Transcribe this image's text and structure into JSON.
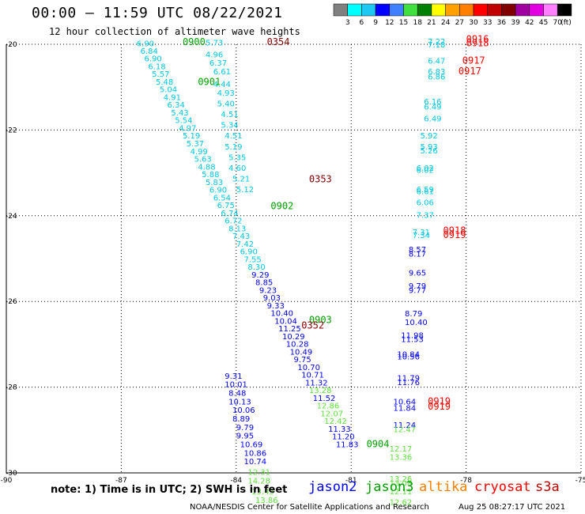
{
  "header": {
    "title": "00:00 – 11:59 UTC 08/22/2021",
    "subtitle": "12 hour collection of altimeter wave heights"
  },
  "colorbar": {
    "labels": [
      "3",
      "6",
      "9",
      "12",
      "15",
      "18",
      "21",
      "24",
      "27",
      "30",
      "33",
      "36",
      "39",
      "42",
      "45",
      "70"
    ],
    "unit": "(ft)",
    "colors": [
      "#808080",
      "#00ffff",
      "#1ec8f0",
      "#0000ff",
      "#4080ff",
      "#40e040",
      "#008000",
      "#ffff00",
      "#ffa000",
      "#ff8000",
      "#ff0000",
      "#c00000",
      "#800000",
      "#a000a0",
      "#e000e0",
      "#ff80ff",
      "#000000"
    ]
  },
  "footer": {
    "note": "note: 1) Time is in UTC; 2) SWH is in feet",
    "credit": "NOAA/NESDIS Center for Satellite Applications and Research",
    "timestamp": "Aug 25 08:27:17 UTC 2021",
    "legend": [
      {
        "name": "jason2",
        "color": "#0000ff"
      },
      {
        "name": "jason3",
        "color": "#00a000"
      },
      {
        "name": "altika",
        "color": "#ff8000"
      },
      {
        "name": "cryosat",
        "color": "#ff0000"
      },
      {
        "name": "s3a",
        "color": "#c00000"
      }
    ]
  },
  "chart_data": {
    "type": "scatter",
    "xlim": [
      -90,
      -75
    ],
    "ylim": [
      -30,
      -20
    ],
    "x_ticks": [
      -90,
      -87,
      -84,
      -81,
      -78,
      -75
    ],
    "y_ticks": [
      -20,
      -22,
      -24,
      -26,
      -28,
      -30
    ],
    "x_tick_labels": [
      "-90",
      "-87",
      "-84",
      "-81",
      "-78",
      "-75"
    ],
    "y_tick_labels": [
      "-20",
      "-22",
      "-24",
      "-26",
      "-28",
      "-30"
    ],
    "grid": true,
    "point_labels": [
      {
        "x": -86.6,
        "y": -20.05,
        "label": "6.90",
        "color": "#00c8e0"
      },
      {
        "x": -86.5,
        "y": -20.22,
        "label": "6.84",
        "color": "#00c8e0"
      },
      {
        "x": -86.4,
        "y": -20.4,
        "label": "6.90",
        "color": "#00c8e0"
      },
      {
        "x": -86.3,
        "y": -20.58,
        "label": "6.18",
        "color": "#00c8e0"
      },
      {
        "x": -86.2,
        "y": -20.76,
        "label": "5.57",
        "color": "#00c8e0"
      },
      {
        "x": -86.1,
        "y": -20.94,
        "label": "5.48",
        "color": "#00c8e0"
      },
      {
        "x": -86.0,
        "y": -21.12,
        "label": "5.04",
        "color": "#00c8e0"
      },
      {
        "x": -85.9,
        "y": -21.3,
        "label": "4.91",
        "color": "#00c8e0"
      },
      {
        "x": -85.8,
        "y": -21.48,
        "label": "6.34",
        "color": "#00c8e0"
      },
      {
        "x": -85.7,
        "y": -21.66,
        "label": "5.43",
        "color": "#00c8e0"
      },
      {
        "x": -85.6,
        "y": -21.84,
        "label": "5.54",
        "color": "#00c8e0"
      },
      {
        "x": -85.5,
        "y": -22.02,
        "label": "4.97",
        "color": "#00c8e0"
      },
      {
        "x": -85.4,
        "y": -22.2,
        "label": "5.19",
        "color": "#00c8e0"
      },
      {
        "x": -85.3,
        "y": -22.38,
        "label": "5.37",
        "color": "#00c8e0"
      },
      {
        "x": -85.2,
        "y": -22.56,
        "label": "4.99",
        "color": "#00c8e0"
      },
      {
        "x": -85.1,
        "y": -22.74,
        "label": "5.63",
        "color": "#00c8e0"
      },
      {
        "x": -85.0,
        "y": -22.92,
        "label": "4.88",
        "color": "#00c8e0"
      },
      {
        "x": -84.9,
        "y": -23.1,
        "label": "5.88",
        "color": "#00c8e0"
      },
      {
        "x": -84.8,
        "y": -23.28,
        "label": "5.83",
        "color": "#00c8e0"
      },
      {
        "x": -84.7,
        "y": -23.46,
        "label": "6.90",
        "color": "#00c8e0"
      },
      {
        "x": -84.6,
        "y": -23.64,
        "label": "6.54",
        "color": "#00c8e0"
      },
      {
        "x": -84.5,
        "y": -23.82,
        "label": "6.75",
        "color": "#00c8e0"
      },
      {
        "x": -84.4,
        "y": -24.0,
        "label": "6.74",
        "color": "#00c8e0"
      },
      {
        "x": -84.3,
        "y": -24.18,
        "label": "6.72",
        "color": "#00c8e0"
      },
      {
        "x": -84.2,
        "y": -24.36,
        "label": "8.13",
        "color": "#00c8e0"
      },
      {
        "x": -84.1,
        "y": -24.54,
        "label": "7.43",
        "color": "#00c8e0"
      },
      {
        "x": -84.0,
        "y": -24.72,
        "label": "7.42",
        "color": "#00c8e0"
      },
      {
        "x": -83.9,
        "y": -24.9,
        "label": "6.90",
        "color": "#00c8e0"
      },
      {
        "x": -83.8,
        "y": -25.08,
        "label": "7.55",
        "color": "#00c8e0"
      },
      {
        "x": -83.7,
        "y": -25.26,
        "label": "8.30",
        "color": "#00c8e0"
      },
      {
        "x": -83.6,
        "y": -25.44,
        "label": "9.29",
        "color": "#0000ff"
      },
      {
        "x": -83.5,
        "y": -25.62,
        "label": "8.85",
        "color": "#0000ff"
      },
      {
        "x": -83.4,
        "y": -25.8,
        "label": "9.23",
        "color": "#0000ff"
      },
      {
        "x": -83.3,
        "y": -25.98,
        "label": "9.03",
        "color": "#0000ff"
      },
      {
        "x": -83.2,
        "y": -26.16,
        "label": "9.33",
        "color": "#0000ff"
      },
      {
        "x": -83.1,
        "y": -26.34,
        "label": "10.40",
        "color": "#0000ff"
      },
      {
        "x": -83.0,
        "y": -26.52,
        "label": "10.04",
        "color": "#0000ff"
      },
      {
        "x": -82.9,
        "y": -26.7,
        "label": "11.25",
        "color": "#0000ff"
      },
      {
        "x": -82.8,
        "y": -26.88,
        "label": "10.29",
        "color": "#0000ff"
      },
      {
        "x": -82.7,
        "y": -27.06,
        "label": "10.28",
        "color": "#0000ff"
      },
      {
        "x": -82.6,
        "y": -27.24,
        "label": "10.49",
        "color": "#0000ff"
      },
      {
        "x": -82.5,
        "y": -27.42,
        "label": "9.75",
        "color": "#0000ff"
      },
      {
        "x": -82.4,
        "y": -27.6,
        "label": "10.70",
        "color": "#0000ff"
      },
      {
        "x": -82.3,
        "y": -27.78,
        "label": "10.71",
        "color": "#0000ff"
      },
      {
        "x": -82.2,
        "y": -27.96,
        "label": "11.32",
        "color": "#0000ff"
      },
      {
        "x": -82.1,
        "y": -28.14,
        "label": "13.28",
        "color": "#60e040"
      },
      {
        "x": -82.0,
        "y": -28.32,
        "label": "11.52",
        "color": "#0000ff"
      },
      {
        "x": -81.9,
        "y": -28.5,
        "label": "12.86",
        "color": "#60e040"
      },
      {
        "x": -81.8,
        "y": -28.68,
        "label": "12.07",
        "color": "#60e040"
      },
      {
        "x": -81.7,
        "y": -28.86,
        "label": "12.42",
        "color": "#60e040"
      },
      {
        "x": -81.6,
        "y": -29.04,
        "label": "11.33",
        "color": "#0000ff"
      },
      {
        "x": -81.5,
        "y": -29.22,
        "label": "11.20",
        "color": "#0000ff"
      },
      {
        "x": -81.4,
        "y": -29.4,
        "label": "11.83",
        "color": "#0000ff"
      },
      {
        "x": -84.8,
        "y": -20.03,
        "label": "5.73",
        "color": "#00c8e0"
      },
      {
        "x": -84.8,
        "y": -20.3,
        "label": "4.96",
        "color": "#00c8e0"
      },
      {
        "x": -84.7,
        "y": -20.5,
        "label": "6.37",
        "color": "#00c8e0"
      },
      {
        "x": -84.6,
        "y": -20.7,
        "label": "6.61",
        "color": "#00c8e0"
      },
      {
        "x": -84.6,
        "y": -21.0,
        "label": "4.44",
        "color": "#00c8e0"
      },
      {
        "x": -84.5,
        "y": -21.2,
        "label": "4.93",
        "color": "#00c8e0"
      },
      {
        "x": -84.5,
        "y": -21.45,
        "label": "5.40",
        "color": "#00c8e0"
      },
      {
        "x": -84.4,
        "y": -21.7,
        "label": "4.51",
        "color": "#00c8e0"
      },
      {
        "x": -84.4,
        "y": -21.95,
        "label": "5.34",
        "color": "#00c8e0"
      },
      {
        "x": -84.3,
        "y": -22.2,
        "label": "4.51",
        "color": "#00c8e0"
      },
      {
        "x": -84.3,
        "y": -22.45,
        "label": "5.19",
        "color": "#00c8e0"
      },
      {
        "x": -84.2,
        "y": -22.7,
        "label": "5.35",
        "color": "#00c8e0"
      },
      {
        "x": -84.2,
        "y": -22.95,
        "label": "4.60",
        "color": "#00c8e0"
      },
      {
        "x": -84.1,
        "y": -23.2,
        "label": "5.21",
        "color": "#00c8e0"
      },
      {
        "x": -84.0,
        "y": -23.45,
        "label": "5.12",
        "color": "#00c8e0"
      },
      {
        "x": -79.0,
        "y": -20.0,
        "label": "7.22",
        "color": "#00c8e0"
      },
      {
        "x": -79.0,
        "y": -20.07,
        "label": "7.18",
        "color": "#00c8e0"
      },
      {
        "x": -79.0,
        "y": -20.45,
        "label": "6.47",
        "color": "#00c8e0"
      },
      {
        "x": -79.0,
        "y": -20.7,
        "label": "6.83",
        "color": "#00c8e0"
      },
      {
        "x": -79.0,
        "y": -20.82,
        "label": "6.86",
        "color": "#00c8e0"
      },
      {
        "x": -79.1,
        "y": -21.4,
        "label": "6.16",
        "color": "#00c8e0"
      },
      {
        "x": -79.1,
        "y": -21.52,
        "label": "6.49",
        "color": "#00c8e0"
      },
      {
        "x": -79.1,
        "y": -21.8,
        "label": "6.49",
        "color": "#00c8e0"
      },
      {
        "x": -79.2,
        "y": -22.2,
        "label": "5.92",
        "color": "#00c8e0"
      },
      {
        "x": -79.2,
        "y": -22.45,
        "label": "5.93",
        "color": "#00c8e0"
      },
      {
        "x": -79.2,
        "y": -22.55,
        "label": "5.26",
        "color": "#00c8e0"
      },
      {
        "x": -79.3,
        "y": -22.95,
        "label": "6.02",
        "color": "#00c8e0"
      },
      {
        "x": -79.3,
        "y": -23.0,
        "label": "6.02",
        "color": "#00c8e0"
      },
      {
        "x": -79.3,
        "y": -23.45,
        "label": "6.59",
        "color": "#00c8e0"
      },
      {
        "x": -79.3,
        "y": -23.5,
        "label": "6.61",
        "color": "#00c8e0"
      },
      {
        "x": -79.3,
        "y": -23.75,
        "label": "6.06",
        "color": "#00c8e0"
      },
      {
        "x": -79.3,
        "y": -24.05,
        "label": "7.37",
        "color": "#00c8e0"
      },
      {
        "x": -79.4,
        "y": -24.45,
        "label": "7.31",
        "color": "#00c8e0"
      },
      {
        "x": -79.4,
        "y": -24.52,
        "label": "7.34",
        "color": "#00c8e0"
      },
      {
        "x": -79.5,
        "y": -24.85,
        "label": "8.57",
        "color": "#0000ff"
      },
      {
        "x": -79.5,
        "y": -24.95,
        "label": "8.17",
        "color": "#0000ff"
      },
      {
        "x": -79.5,
        "y": -25.4,
        "label": "9.65",
        "color": "#0000ff"
      },
      {
        "x": -79.5,
        "y": -25.7,
        "label": "9.79",
        "color": "#0000ff"
      },
      {
        "x": -79.5,
        "y": -25.8,
        "label": "9.77",
        "color": "#0000ff"
      },
      {
        "x": -79.6,
        "y": -26.35,
        "label": "8.79",
        "color": "#0000ff"
      },
      {
        "x": -79.6,
        "y": -26.55,
        "label": "10.40",
        "color": "#0000ff"
      },
      {
        "x": -79.7,
        "y": -26.85,
        "label": "11.98",
        "color": "#0000ff"
      },
      {
        "x": -79.7,
        "y": -26.95,
        "label": "11.53",
        "color": "#0000ff"
      },
      {
        "x": -79.8,
        "y": -27.3,
        "label": "10.84",
        "color": "#0000ff"
      },
      {
        "x": -79.8,
        "y": -27.35,
        "label": "10.56",
        "color": "#0000ff"
      },
      {
        "x": -79.8,
        "y": -27.85,
        "label": "11.79",
        "color": "#0000ff"
      },
      {
        "x": -79.8,
        "y": -27.95,
        "label": "11.76",
        "color": "#0000ff"
      },
      {
        "x": -79.9,
        "y": -28.4,
        "label": "10.64",
        "color": "#0000ff"
      },
      {
        "x": -79.9,
        "y": -28.55,
        "label": "11.84",
        "color": "#0000ff"
      },
      {
        "x": -79.9,
        "y": -28.95,
        "label": "11.24",
        "color": "#0000ff"
      },
      {
        "x": -79.9,
        "y": -29.05,
        "label": "12.47",
        "color": "#60e040"
      },
      {
        "x": -80.0,
        "y": -29.5,
        "label": "12.17",
        "color": "#60e040"
      },
      {
        "x": -80.0,
        "y": -29.7,
        "label": "13.36",
        "color": "#60e040"
      },
      {
        "x": -80.0,
        "y": -30.2,
        "label": "13.26",
        "color": "#60e040"
      },
      {
        "x": -80.0,
        "y": -30.3,
        "label": "13.08",
        "color": "#60e040"
      },
      {
        "x": -80.0,
        "y": -30.5,
        "label": "12.11",
        "color": "#60e040"
      },
      {
        "x": -80.0,
        "y": -30.75,
        "label": "12.62",
        "color": "#60e040"
      },
      {
        "x": -83.9,
        "y": -29.4,
        "label": "10.69",
        "color": "#0000ff"
      },
      {
        "x": -83.8,
        "y": -29.6,
        "label": "10.86",
        "color": "#0000ff"
      },
      {
        "x": -83.8,
        "y": -29.8,
        "label": "10.74",
        "color": "#0000ff"
      },
      {
        "x": -83.7,
        "y": -30.05,
        "label": "12.31",
        "color": "#60e040"
      },
      {
        "x": -83.7,
        "y": -30.25,
        "label": "14.28",
        "color": "#60e040"
      },
      {
        "x": -83.6,
        "y": -30.5,
        "label": "13.43",
        "color": "#60e040"
      },
      {
        "x": -83.5,
        "y": -30.7,
        "label": "13.86",
        "color": "#60e040"
      },
      {
        "x": -84.0,
        "y": -29.2,
        "label": "9.95",
        "color": "#0000ff"
      },
      {
        "x": -84.0,
        "y": -29.0,
        "label": "9.79",
        "color": "#0000ff"
      },
      {
        "x": -84.1,
        "y": -28.8,
        "label": "8.89",
        "color": "#0000ff"
      },
      {
        "x": -84.1,
        "y": -28.6,
        "label": "10.06",
        "color": "#0000ff"
      },
      {
        "x": -84.2,
        "y": -28.4,
        "label": "10.13",
        "color": "#0000ff"
      },
      {
        "x": -84.2,
        "y": -28.2,
        "label": "8.48",
        "color": "#0000ff"
      },
      {
        "x": -84.3,
        "y": -28.0,
        "label": "10.01",
        "color": "#0000ff"
      },
      {
        "x": -84.3,
        "y": -27.8,
        "label": "9.31",
        "color": "#0000ff"
      }
    ],
    "track_labels": [
      {
        "x": -85.4,
        "y": -20.02,
        "label": "0900",
        "color": "#00a000"
      },
      {
        "x": -83.2,
        "y": -20.02,
        "label": "0354",
        "color": "#800000"
      },
      {
        "x": -85.0,
        "y": -20.95,
        "label": "0901",
        "color": "#00a000"
      },
      {
        "x": -82.1,
        "y": -23.22,
        "label": "0353",
        "color": "#800000"
      },
      {
        "x": -83.1,
        "y": -23.85,
        "label": "0902",
        "color": "#00a000"
      },
      {
        "x": -82.1,
        "y": -26.5,
        "label": "0903",
        "color": "#00a000"
      },
      {
        "x": -82.3,
        "y": -26.63,
        "label": "0352",
        "color": "#800000"
      },
      {
        "x": -80.6,
        "y": -29.4,
        "label": "0904",
        "color": "#00a000"
      },
      {
        "x": -78.0,
        "y": -19.95,
        "label": "0916",
        "color": "#ff0000"
      },
      {
        "x": -78.0,
        "y": -20.05,
        "label": "0918",
        "color": "#ff0000"
      },
      {
        "x": -78.1,
        "y": -20.45,
        "label": "0917",
        "color": "#ff0000"
      },
      {
        "x": -78.2,
        "y": -20.7,
        "label": "0917",
        "color": "#ff0000"
      },
      {
        "x": -78.6,
        "y": -24.42,
        "label": "0918",
        "color": "#ff0000"
      },
      {
        "x": -78.6,
        "y": -24.52,
        "label": "0919",
        "color": "#ff0000"
      },
      {
        "x": -79.0,
        "y": -28.4,
        "label": "0919",
        "color": "#ff0000"
      },
      {
        "x": -79.0,
        "y": -28.52,
        "label": "0919",
        "color": "#ff0000"
      }
    ]
  }
}
